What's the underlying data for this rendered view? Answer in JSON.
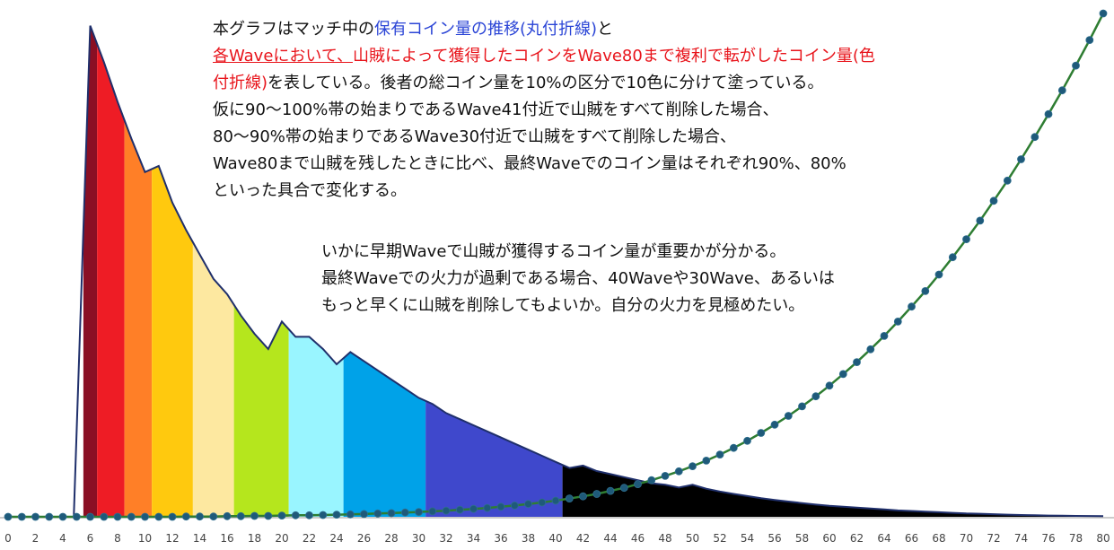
{
  "chart_data": {
    "type": "area",
    "title": "",
    "xlabel": "",
    "ylabel": "",
    "xlim": [
      0,
      80
    ],
    "x_ticks": [
      0,
      2,
      4,
      6,
      8,
      10,
      12,
      14,
      16,
      18,
      20,
      22,
      24,
      26,
      28,
      30,
      32,
      34,
      36,
      38,
      40,
      42,
      44,
      46,
      48,
      50,
      52,
      54,
      56,
      58,
      60,
      62,
      64,
      66,
      68,
      70,
      72,
      74,
      76,
      78,
      80
    ],
    "grid": false,
    "legend": "none",
    "series": [
      {
        "name": "保有コイン量の推移(丸付折線)",
        "type": "line",
        "color": "#2e7d32",
        "marker_color": "#1f5a7a",
        "x": [
          0,
          1,
          2,
          3,
          4,
          5,
          6,
          7,
          8,
          9,
          10,
          11,
          12,
          13,
          14,
          15,
          16,
          17,
          18,
          19,
          20,
          21,
          22,
          23,
          24,
          25,
          26,
          27,
          28,
          29,
          30,
          31,
          32,
          33,
          34,
          35,
          36,
          37,
          38,
          39,
          40,
          41,
          42,
          43,
          44,
          45,
          46,
          47,
          48,
          49,
          50,
          51,
          52,
          53,
          54,
          55,
          56,
          57,
          58,
          59,
          60,
          61,
          62,
          63,
          64,
          65,
          66,
          67,
          68,
          69,
          70,
          71,
          72,
          73,
          74,
          75,
          76,
          77,
          78,
          79,
          80
        ],
        "y": [
          0,
          0,
          0,
          0,
          0,
          0,
          0,
          0,
          0,
          0,
          0,
          0,
          0,
          0.1,
          0.1,
          0.1,
          0.2,
          0.2,
          0.3,
          0.3,
          0.4,
          0.5,
          0.5,
          0.6,
          0.7,
          0.8,
          0.9,
          1.1,
          1.2,
          1.4,
          1.6,
          1.8,
          2.0,
          2.3,
          2.6,
          2.9,
          3.3,
          3.7,
          4.2,
          4.7,
          5.3,
          6.0,
          6.7,
          7.5,
          8.5,
          9.5,
          10.7,
          12.0,
          13.4,
          14.9,
          16.6,
          18.4,
          20.4,
          22.6,
          24.9,
          27.5,
          30.2,
          33.1,
          36.2,
          39.5,
          43.0,
          46.8,
          50.7,
          54.9,
          59.3,
          64.0,
          68.9,
          74.0,
          79.4,
          85.1,
          91.0,
          97.1,
          103.6,
          110.2,
          117.2,
          124.5,
          132.0,
          139.8,
          147.9,
          156.3,
          165.0
        ]
      },
      {
        "name": "各Waveにおいて、山賊によって獲得したコインをWave80まで複利で転がしたコイン量(色付折線)",
        "type": "area",
        "color": "#1f2f6b",
        "x": [
          4.8,
          6,
          7,
          8,
          9,
          10,
          11,
          12,
          13,
          14,
          15,
          16,
          17,
          18,
          19,
          20,
          21,
          22,
          23,
          24,
          25,
          26,
          27,
          28,
          29,
          30,
          31,
          32,
          33,
          34,
          35,
          36,
          37,
          38,
          39,
          40,
          41,
          42,
          43,
          44,
          45,
          46,
          47,
          48,
          49,
          50,
          51,
          52,
          53,
          54,
          55,
          56,
          57,
          58,
          59,
          60,
          61,
          62,
          63,
          64,
          65,
          66,
          67,
          68,
          69,
          70,
          71,
          72,
          73,
          74,
          75,
          76,
          77,
          78,
          79,
          80
        ],
        "y": [
          0,
          161,
          149,
          136,
          124,
          113,
          115,
          103,
          94,
          86,
          78,
          73,
          66,
          60,
          55,
          64,
          59,
          59,
          55,
          50,
          54,
          51,
          48,
          45,
          42,
          39,
          37,
          34,
          32,
          30,
          28,
          26,
          24,
          22,
          20,
          18,
          16,
          16.8,
          15,
          14,
          13,
          12,
          11,
          10.5,
          9.6,
          10.5,
          9.2,
          8.3,
          7.5,
          6.8,
          6.1,
          5.5,
          5,
          4.5,
          4,
          3.6,
          3.3,
          3,
          2.7,
          2.4,
          2.1,
          1.9,
          1.7,
          1.5,
          1.3,
          1.1,
          1,
          0.85,
          0.7,
          0.6,
          0.5,
          0.4,
          0.35,
          0.3,
          0.25,
          0.2
        ]
      }
    ],
    "bands": [
      {
        "from": 5.5,
        "to": 6.5,
        "color": "#8a0f24"
      },
      {
        "from": 6.5,
        "to": 8.5,
        "color": "#ee1c25"
      },
      {
        "from": 8.5,
        "to": 10.5,
        "color": "#ff7f27"
      },
      {
        "from": 10.5,
        "to": 13.5,
        "color": "#ffc90e"
      },
      {
        "from": 13.5,
        "to": 16.5,
        "color": "#fde8a0"
      },
      {
        "from": 16.5,
        "to": 20.5,
        "color": "#b5e61d"
      },
      {
        "from": 20.5,
        "to": 24.5,
        "color": "#99f5ff"
      },
      {
        "from": 24.5,
        "to": 30.5,
        "color": "#00a2e8"
      },
      {
        "from": 30.5,
        "to": 40.5,
        "color": "#3f48cc"
      },
      {
        "from": 40.5,
        "to": 80,
        "color": "#000000"
      }
    ],
    "annotations": {
      "line1_pre": "本グラフはマッチ中の",
      "line1_blue": "保有コイン量の推移(丸付折線)",
      "line1_post": "と",
      "line2_red_ul": "各Waveにおいて、",
      "line2_red": "山賊によって獲得したコインをWave80まで複利で転がしたコイン量(色",
      "line3_red": "付折線)",
      "line3_post": "を表している。後者の総コイン量を10%の区分で10色に分けて塗っている。",
      "line4": "仮に90〜100%帯の始まりであるWave41付近で山賊をすべて削除した場合、",
      "line5": "80〜90%帯の始まりであるWave30付近で山賊をすべて削除した場合、",
      "line6": "Wave80まで山賊を残したときに比べ、最終Waveでのコイン量はそれぞれ90%、80%",
      "line7": "といった具合で変化する。",
      "note1": "いかに早期Waveで山賊が獲得するコイン量が重要かが分かる。",
      "note2": "最終Waveでの火力が過剰である場合、40Waveや30Wave、あるいは",
      "note3": "もっと早くに山賊を削除してもよいか。自分の火力を見極めたい。"
    }
  }
}
